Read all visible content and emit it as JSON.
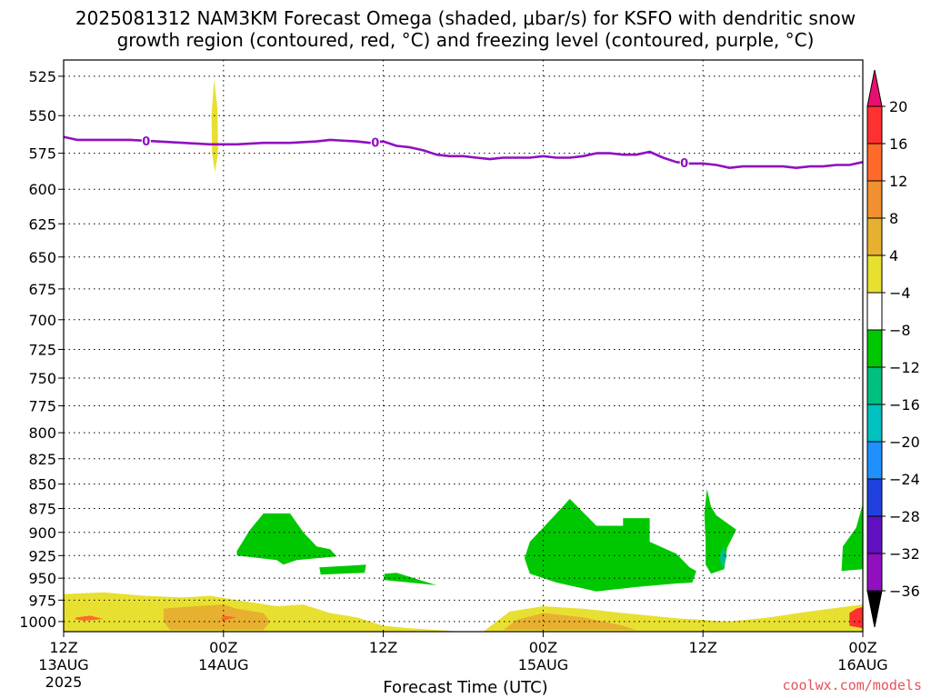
{
  "chart_data": {
    "type": "heatmap",
    "title_line1": "2025081312 NAM3KM Forecast Omega (shaded, μbar/s) for KSFO with dendritic snow",
    "title_line2": "growth region (contoured, red, °C) and freezing level (contoured, purple, °C)",
    "xlabel": "Forecast Time (UTC)",
    "ylabel": "",
    "watermark": "coolwx.com/models",
    "x_ticks": [
      {
        "h": 0,
        "label": "12Z",
        "sub": "13AUG",
        "sub2": "2025"
      },
      {
        "h": 12,
        "label": "00Z",
        "sub": "14AUG",
        "sub2": ""
      },
      {
        "h": 24,
        "label": "12Z",
        "sub": "",
        "sub2": ""
      },
      {
        "h": 36,
        "label": "00Z",
        "sub": "15AUG",
        "sub2": ""
      },
      {
        "h": 48,
        "label": "12Z",
        "sub": "",
        "sub2": ""
      },
      {
        "h": 60,
        "label": "00Z",
        "sub": "16AUG",
        "sub2": ""
      }
    ],
    "xlim": [
      0,
      60
    ],
    "ylim": [
      1012,
      515
    ],
    "y_ticks": [
      525,
      550,
      575,
      600,
      625,
      650,
      675,
      700,
      725,
      750,
      775,
      800,
      825,
      850,
      875,
      900,
      925,
      950,
      975,
      1000
    ],
    "colorbar": {
      "labels": [
        "20",
        "16",
        "12",
        "8",
        "4",
        "−4",
        "−8",
        "−12",
        "−16",
        "−20",
        "−24",
        "−28",
        "−32",
        "−36"
      ],
      "colors": [
        "#e8106e",
        "#ff3030",
        "#ff6a2a",
        "#f09030",
        "#e8b030",
        "#e8e030",
        "#ffffff",
        "#00c800",
        "#00c080",
        "#00c0c0",
        "#2090ff",
        "#2040e0",
        "#6010c0",
        "#9010c0",
        "#a0a0a0",
        "#000000"
      ]
    },
    "freezing_level": {
      "label": "0",
      "label_at_hours": [
        6.2,
        23.4,
        46.6
      ],
      "points": [
        [
          0,
          564
        ],
        [
          1,
          566
        ],
        [
          3,
          566
        ],
        [
          5,
          566
        ],
        [
          7,
          567
        ],
        [
          9,
          568
        ],
        [
          11,
          569
        ],
        [
          13,
          569
        ],
        [
          15,
          568
        ],
        [
          17,
          568
        ],
        [
          19,
          567
        ],
        [
          20,
          566
        ],
        [
          22,
          567
        ],
        [
          23,
          568
        ],
        [
          24,
          567
        ],
        [
          25,
          570
        ],
        [
          26,
          571
        ],
        [
          27,
          573
        ],
        [
          28,
          576
        ],
        [
          29,
          577
        ],
        [
          30,
          577
        ],
        [
          31,
          578
        ],
        [
          32,
          579
        ],
        [
          33,
          578
        ],
        [
          34,
          578
        ],
        [
          35,
          578
        ],
        [
          36,
          577
        ],
        [
          37,
          578
        ],
        [
          38,
          578
        ],
        [
          39,
          577
        ],
        [
          40,
          575
        ],
        [
          41,
          575
        ],
        [
          42,
          576
        ],
        [
          43,
          576
        ],
        [
          44,
          574
        ],
        [
          45,
          578
        ],
        [
          46,
          581
        ],
        [
          47,
          582
        ],
        [
          48,
          582
        ],
        [
          49,
          583
        ],
        [
          50,
          585
        ],
        [
          51,
          584
        ],
        [
          52,
          584
        ],
        [
          53,
          584
        ],
        [
          54,
          584
        ],
        [
          55,
          585
        ],
        [
          56,
          584
        ],
        [
          57,
          584
        ],
        [
          58,
          583
        ],
        [
          59,
          583
        ],
        [
          60,
          581
        ]
      ]
    },
    "shaded_regions": [
      {
        "band": "4 to 8",
        "color": "#e8e030",
        "points": [
          [
            0,
            968
          ],
          [
            3,
            966
          ],
          [
            6,
            970
          ],
          [
            9,
            972
          ],
          [
            11,
            970
          ],
          [
            13,
            975
          ],
          [
            16,
            982
          ],
          [
            18,
            980
          ],
          [
            19,
            985
          ],
          [
            20,
            990
          ],
          [
            22,
            995
          ],
          [
            24,
            1005
          ],
          [
            26,
            1008
          ],
          [
            30,
            1012
          ],
          [
            0,
            1012
          ]
        ]
      },
      {
        "band": "8 to 12",
        "color": "#e8b030",
        "points": [
          [
            7.5,
            985
          ],
          [
            9,
            983
          ],
          [
            12,
            980
          ],
          [
            13,
            985
          ],
          [
            15,
            990
          ],
          [
            15.5,
            1000
          ],
          [
            15,
            1010
          ],
          [
            8,
            1010
          ],
          [
            7.5,
            1000
          ]
        ]
      },
      {
        "band": "4 to 8",
        "color": "#e8e030",
        "points": [
          [
            31.5,
            1012
          ],
          [
            32.5,
            1000
          ],
          [
            33.5,
            988
          ],
          [
            36,
            982
          ],
          [
            39,
            985
          ],
          [
            42,
            990
          ],
          [
            46,
            996
          ],
          [
            50,
            1000
          ],
          [
            53,
            995
          ],
          [
            56,
            988
          ],
          [
            59,
            982
          ],
          [
            60,
            980
          ],
          [
            60,
            1012
          ]
        ]
      },
      {
        "band": "8 to 12",
        "color": "#e8b030",
        "points": [
          [
            33,
            1010
          ],
          [
            34,
            998
          ],
          [
            36,
            990
          ],
          [
            39,
            995
          ],
          [
            42,
            1005
          ],
          [
            43,
            1010
          ]
        ]
      },
      {
        "band": "4 to 8",
        "color": "#e8e030",
        "points": [
          [
            11.3,
            527
          ],
          [
            11.55,
            545
          ],
          [
            11.6,
            575
          ],
          [
            11.35,
            588
          ],
          [
            11.15,
            575
          ],
          [
            11.1,
            550
          ]
        ]
      },
      {
        "band": "-4 to -8",
        "color": "#00c800",
        "points": [
          [
            13,
            920
          ],
          [
            14,
            897
          ],
          [
            15,
            880
          ],
          [
            17,
            880
          ],
          [
            18,
            900
          ],
          [
            19,
            915
          ],
          [
            20,
            918
          ],
          [
            20.5,
            926
          ],
          [
            17.5,
            930
          ],
          [
            16.5,
            935
          ],
          [
            16,
            930
          ],
          [
            13,
            925
          ]
        ]
      },
      {
        "band": "-4 to -8",
        "color": "#00c800",
        "points": [
          [
            19.2,
            938
          ],
          [
            22.7,
            935
          ],
          [
            22.6,
            944
          ],
          [
            19.3,
            946
          ]
        ]
      },
      {
        "band": "-4 to -8",
        "color": "#00c800",
        "points": [
          [
            24.1,
            945
          ],
          [
            25,
            944
          ],
          [
            28,
            958
          ],
          [
            24,
            952
          ]
        ]
      },
      {
        "band": "-4 to -8",
        "color": "#00c800",
        "points": [
          [
            35,
            910
          ],
          [
            37,
            880
          ],
          [
            38,
            865
          ],
          [
            40,
            893
          ],
          [
            42,
            893
          ],
          [
            42,
            885
          ],
          [
            44,
            885
          ],
          [
            44,
            910
          ],
          [
            46,
            923
          ],
          [
            47,
            938
          ],
          [
            47.5,
            942
          ],
          [
            47.2,
            955
          ],
          [
            46,
            956
          ],
          [
            43,
            960
          ],
          [
            40,
            965
          ],
          [
            37,
            955
          ],
          [
            35,
            945
          ],
          [
            34.6,
            928
          ]
        ]
      },
      {
        "band": "-4 to -8",
        "color": "#00c800",
        "points": [
          [
            48.3,
            855
          ],
          [
            48.6,
            873
          ],
          [
            49,
            882
          ],
          [
            50.5,
            897
          ],
          [
            49.8,
            917
          ],
          [
            49.6,
            940
          ],
          [
            48.6,
            945
          ],
          [
            48.2,
            935
          ],
          [
            48.2,
            910
          ],
          [
            48.1,
            880
          ]
        ]
      },
      {
        "band": "-8 to -12",
        "color": "#00c080",
        "points": [
          [
            49.5,
            915
          ],
          [
            49.8,
            925
          ],
          [
            49.5,
            940
          ],
          [
            49.2,
            928
          ]
        ]
      },
      {
        "band": "-4 to -8",
        "color": "#00c800",
        "points": [
          [
            60,
            870
          ],
          [
            60,
            940
          ],
          [
            58.4,
            942
          ],
          [
            58.5,
            915
          ],
          [
            59.5,
            895
          ]
        ]
      },
      {
        "band": "12 to 16",
        "color": "#ff6a2a",
        "points": [
          [
            12,
            993
          ],
          [
            13,
            995
          ],
          [
            12,
            999
          ],
          [
            11.8,
            997
          ]
        ]
      },
      {
        "band": "12 to 16",
        "color": "#ff6a2a",
        "points": [
          [
            1,
            995
          ],
          [
            2,
            993
          ],
          [
            3,
            997
          ],
          [
            1.5,
            999
          ],
          [
            0.8,
            997
          ]
        ]
      },
      {
        "band": "16 to 20",
        "color": "#ff3030",
        "points": [
          [
            59,
            1005
          ],
          [
            59,
            990
          ],
          [
            59.5,
            985
          ],
          [
            60,
            983
          ],
          [
            60,
            1008
          ]
        ]
      }
    ],
    "ground_band": {
      "color": "#a95d2e",
      "from_hpa": 1012
    }
  }
}
